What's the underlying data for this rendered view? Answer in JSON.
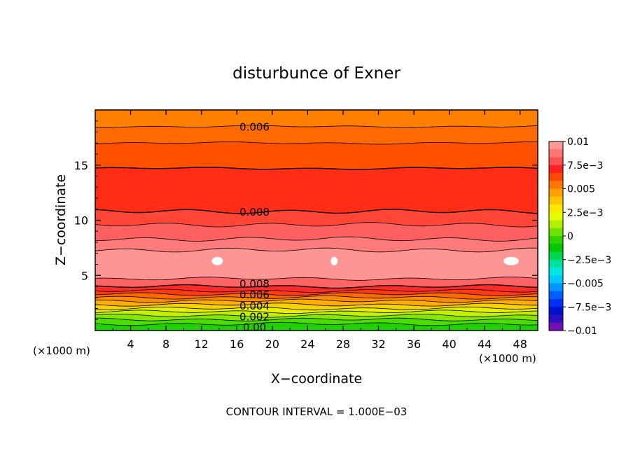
{
  "chart_data": {
    "type": "contour",
    "title": "disturbunce of Exner",
    "xlabel": "X−coordinate",
    "ylabel": "Z−coordinate",
    "x_unit_left": "(×1000 m)",
    "x_unit_right": "(×1000 m)",
    "footer": "CONTOUR INTERVAL = 1.000E−03",
    "xlim": [
      0,
      50
    ],
    "ylim": [
      0,
      20
    ],
    "x_ticks": [
      4,
      8,
      12,
      16,
      20,
      24,
      28,
      32,
      36,
      40,
      44,
      48
    ],
    "x_tick_labels": [
      "4",
      "8",
      "12",
      "16",
      "20",
      "24",
      "28",
      "32",
      "36",
      "40",
      "44",
      "48"
    ],
    "y_ticks": [
      5,
      10,
      15
    ],
    "y_tick_labels": [
      "5",
      "10",
      "15"
    ],
    "contour_interval": 0.001,
    "contour_labels": [
      {
        "text": "0.006",
        "x": 18,
        "y": 18.5
      },
      {
        "text": "0.008",
        "x": 18,
        "y": 10.8
      },
      {
        "text": "0.008",
        "x": 18,
        "y": 4.3
      },
      {
        "text": "0.006",
        "x": 18,
        "y": 3.3
      },
      {
        "text": "0.004",
        "x": 18,
        "y": 2.3
      },
      {
        "text": "0.002",
        "x": 18,
        "y": 1.3
      },
      {
        "text": "0.00",
        "x": 18,
        "y": 0.35
      }
    ],
    "bands": [
      {
        "z_top": 20.0,
        "value": 0.0055,
        "color": "#ff8000"
      },
      {
        "z_top": 18.5,
        "value": 0.0065,
        "color": "#ff6a00"
      },
      {
        "z_top": 17.0,
        "value": 0.0068,
        "color": "#ff5000"
      },
      {
        "z_top": 14.7,
        "value": 0.0075,
        "color": "#ff2d16"
      },
      {
        "z_top": 10.8,
        "value": 0.0085,
        "color": "#ff4636"
      },
      {
        "z_top": 9.6,
        "value": 0.009,
        "color": "#fc6060"
      },
      {
        "z_top": 8.3,
        "value": 0.0095,
        "color": "#ff7a7a"
      },
      {
        "z_top": 7.3,
        "value": 0.01,
        "color": "#fe9595"
      },
      {
        "z_top": 4.7,
        "value": 0.0092,
        "color": "#ff6464"
      },
      {
        "z_top": 4.0,
        "value": 0.0085,
        "color": "#ff2a2a"
      },
      {
        "z_top": 3.6,
        "value": 0.0078,
        "color": "#ff3a10"
      },
      {
        "z_top": 3.3,
        "value": 0.007,
        "color": "#ff6a00"
      },
      {
        "z_top": 3.0,
        "value": 0.0064,
        "color": "#ff8c00"
      },
      {
        "z_top": 2.7,
        "value": 0.0056,
        "color": "#ffae00"
      },
      {
        "z_top": 2.35,
        "value": 0.0046,
        "color": "#f5d200"
      },
      {
        "z_top": 2.0,
        "value": 0.0036,
        "color": "#e8f000"
      },
      {
        "z_top": 1.7,
        "value": 0.0026,
        "color": "#c3f000"
      },
      {
        "z_top": 1.35,
        "value": 0.0016,
        "color": "#86e600"
      },
      {
        "z_top": 1.0,
        "value": 0.0008,
        "color": "#4bdc00"
      },
      {
        "z_top": 0.6,
        "value": 0.0002,
        "color": "#1ed200"
      }
    ],
    "white_blobs": [
      {
        "x": 13.8,
        "y": 6.3
      },
      {
        "x": 27.0,
        "y": 6.3
      },
      {
        "x": 47.0,
        "y": 6.3
      }
    ],
    "colorbar": {
      "labels": [
        "0.01",
        "7.5e−3",
        "0.005",
        "2.5e−3",
        "0",
        "−2.5e−3",
        "−0.005",
        "−7.5e−3",
        "−0.01"
      ],
      "colors_top_to_bottom": [
        "#ff9999",
        "#ff7575",
        "#ff5252",
        "#ff2020",
        "#ff4800",
        "#ff7700",
        "#ffa000",
        "#ffc400",
        "#ffe800",
        "#e6ff00",
        "#b0f000",
        "#70e200",
        "#2ed400",
        "#00c800",
        "#00d650",
        "#00e0a0",
        "#00e8e0",
        "#00c8ff",
        "#0096ff",
        "#0060ff",
        "#0030f0",
        "#0010d0",
        "#2a10c0",
        "#7010b0"
      ]
    }
  }
}
